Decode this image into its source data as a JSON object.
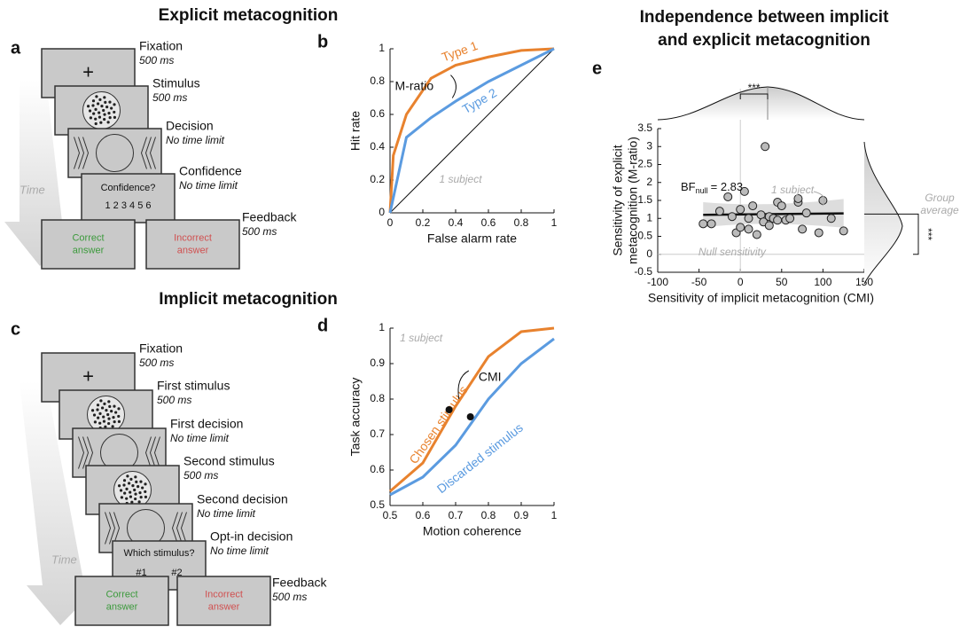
{
  "headings": {
    "explicit": "Explicit metacognition",
    "implicit": "Implicit metacognition",
    "independence": [
      "Independence between implicit",
      "and explicit metacognition"
    ]
  },
  "letters": {
    "a": "a",
    "b": "b",
    "c": "c",
    "d": "d",
    "e": "e"
  },
  "explicit_task": {
    "time": "Time",
    "steps": [
      {
        "name": "Fixation",
        "duration": "500 ms"
      },
      {
        "name": "Stimulus",
        "duration": "500 ms"
      },
      {
        "name": "Decision",
        "duration": "No time limit"
      },
      {
        "name": "Confidence",
        "duration": "No time limit"
      },
      {
        "name": "Feedback",
        "duration": "500 ms"
      }
    ],
    "screens": {
      "fixation": "+",
      "prompt": "Confidence?",
      "scale": "1 2 3 4 5 6",
      "correct": [
        "Correct",
        "answer"
      ],
      "incorrect": [
        "Incorrect",
        "answer"
      ]
    }
  },
  "implicit_task": {
    "time": "Time",
    "steps": [
      {
        "name": "Fixation",
        "duration": "500 ms"
      },
      {
        "name": "First stimulus",
        "duration": "500 ms"
      },
      {
        "name": "First decision",
        "duration": "No time limit"
      },
      {
        "name": "Second stimulus",
        "duration": "500 ms"
      },
      {
        "name": "Second decision",
        "duration": "No time limit"
      },
      {
        "name": "Opt-in decision",
        "duration": "No time limit"
      },
      {
        "name": "Feedback",
        "duration": "500 ms"
      }
    ],
    "screens": {
      "fixation": "+",
      "prompt": "Which stimulus?",
      "options": [
        "#1",
        "#2"
      ],
      "correct": [
        "Correct",
        "answer"
      ],
      "incorrect": [
        "Incorrect",
        "answer"
      ]
    }
  },
  "chart_data": [
    {
      "type": "line",
      "xlabel": "False alarm rate",
      "ylabel": "Hit rate",
      "xlim": [
        0,
        1
      ],
      "ylim": [
        0,
        1
      ],
      "xticks": [
        0,
        0.2,
        0.4,
        0.6,
        0.8,
        1
      ],
      "yticks": [
        0,
        0.2,
        0.4,
        0.6,
        0.8,
        1
      ],
      "series": [
        {
          "name": "Type 1",
          "color": "#e8822e",
          "x": [
            0,
            0.02,
            0.1,
            0.25,
            0.4,
            0.6,
            0.8,
            1
          ],
          "values": [
            0,
            0.35,
            0.6,
            0.82,
            0.9,
            0.95,
            0.99,
            1
          ]
        },
        {
          "name": "Type 2",
          "color": "#5b9be0",
          "x": [
            0,
            0.1,
            0.25,
            0.4,
            0.6,
            0.8,
            1
          ],
          "values": [
            0,
            0.46,
            0.58,
            0.68,
            0.8,
            0.9,
            1
          ]
        }
      ],
      "annotations": {
        "measure": "M-ratio",
        "subject": "1 subject"
      }
    },
    {
      "type": "line",
      "xlabel": "Motion coherence",
      "ylabel": "Task accuracy",
      "xlim": [
        0.5,
        1
      ],
      "ylim": [
        0.5,
        1
      ],
      "xticks": [
        0.5,
        0.6,
        0.7,
        0.8,
        0.9,
        1
      ],
      "yticks": [
        0.5,
        0.6,
        0.7,
        0.8,
        0.9,
        1
      ],
      "series": [
        {
          "name": "Chosen stimulus",
          "color": "#e8822e",
          "x": [
            0.5,
            0.6,
            0.7,
            0.8,
            0.9,
            1
          ],
          "values": [
            0.54,
            0.62,
            0.78,
            0.92,
            0.99,
            1
          ]
        },
        {
          "name": "Discarded stimulus",
          "color": "#5b9be0",
          "x": [
            0.5,
            0.6,
            0.7,
            0.8,
            0.9,
            1
          ],
          "values": [
            0.53,
            0.58,
            0.67,
            0.8,
            0.9,
            0.97
          ]
        }
      ],
      "markers": {
        "x": [
          0.68,
          0.745
        ],
        "values": [
          0.77,
          0.75
        ]
      },
      "annotations": {
        "measure": "CMI",
        "subject": "1 subject"
      }
    },
    {
      "type": "scatter",
      "xlabel": "Sensitivity of implicit metacognition (CMI)",
      "ylabel": [
        "Sensitivity of explicit",
        "metacognition (M-ratio)"
      ],
      "xlim": [
        -100,
        150
      ],
      "ylim": [
        -0.5,
        3.5
      ],
      "xticks": [
        -100,
        -50,
        0,
        50,
        100,
        150
      ],
      "yticks": [
        -0.5,
        0,
        0.5,
        1,
        1.5,
        2,
        2.5,
        3,
        3.5
      ],
      "x": [
        -45,
        -35,
        -25,
        -15,
        -10,
        -5,
        0,
        0,
        5,
        10,
        10,
        15,
        20,
        25,
        28,
        30,
        35,
        35,
        40,
        45,
        45,
        50,
        55,
        60,
        70,
        70,
        75,
        80,
        95,
        100,
        110,
        125
      ],
      "values": [
        0.85,
        0.85,
        1.2,
        1.6,
        1.05,
        0.6,
        1.25,
        0.75,
        1.75,
        1.0,
        0.7,
        1.35,
        0.55,
        1.1,
        0.9,
        3.0,
        0.8,
        1.05,
        1.0,
        1.45,
        0.95,
        1.35,
        0.95,
        1.0,
        1.45,
        1.55,
        0.7,
        1.15,
        0.6,
        1.5,
        1.0,
        0.65
      ],
      "fit": {
        "x": [
          -45,
          125
        ],
        "values": [
          1.1,
          1.14
        ]
      },
      "group_average": 1.12,
      "annotations": {
        "bf": "BF",
        "bf_sub": "null",
        "bf_value": "= 2.83",
        "subject": "1 subject",
        "group": [
          "Group",
          "average"
        ],
        "null": "Null sensitivity",
        "sig_top": "***",
        "sig_right": "***"
      }
    }
  ]
}
